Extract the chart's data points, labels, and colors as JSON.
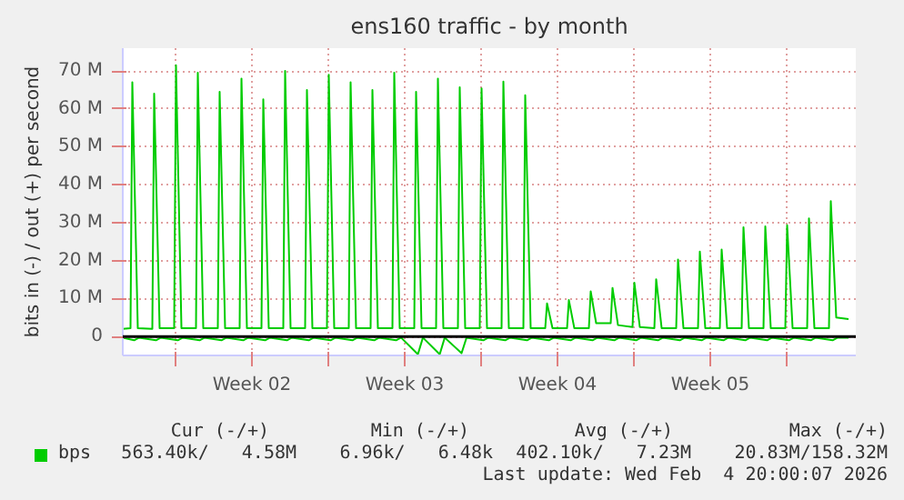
{
  "chart_data": {
    "type": "line",
    "title": "ens160 traffic - by month",
    "ylabel": "bits in (-) / out (+) per second",
    "xlim": [
      "2026-01-02T14:00",
      "2026-02-05T04:00"
    ],
    "ylim": [
      -5,
      76
    ],
    "xticks": [
      {
        "value": "2026-01-05",
        "label": null
      },
      {
        "value": "2026-01-08T12:00",
        "label": "Week 02"
      },
      {
        "value": "2026-01-12",
        "label": null
      },
      {
        "value": "2026-01-15T12:00",
        "label": "Week 03"
      },
      {
        "value": "2026-01-19",
        "label": null
      },
      {
        "value": "2026-01-22T12:00",
        "label": "Week 04"
      },
      {
        "value": "2026-01-26",
        "label": null
      },
      {
        "value": "2026-01-29T12:00",
        "label": "Week 05"
      },
      {
        "value": "2026-02-02",
        "label": null
      }
    ],
    "yticks": [
      {
        "value": 0,
        "label": "0"
      },
      {
        "value": 10,
        "label": "10 M"
      },
      {
        "value": 20,
        "label": "20 M"
      },
      {
        "value": 30,
        "label": "30 M"
      },
      {
        "value": 40,
        "label": "40 M"
      },
      {
        "value": 50,
        "label": "50 M"
      },
      {
        "value": 60,
        "label": "60 M"
      },
      {
        "value": 70,
        "label": "70 M"
      }
    ],
    "grid": true,
    "legend": "bottom",
    "marker": "none",
    "line_style": "solid",
    "ref_lines": [
      {
        "axis": "y",
        "value": 0,
        "label": null,
        "color": "#000000"
      }
    ],
    "series": [
      {
        "name": "bps",
        "color": "#00cc00",
        "x": [
          "2026-01-02T14:00",
          "2026-01-02T22:30",
          "2026-01-03T00:30",
          "2026-01-03T06:30",
          "2026-01-03T22:30",
          "2026-01-04T00:30",
          "2026-01-04T06:30",
          "2026-01-04T22:30",
          "2026-01-05T00:30",
          "2026-01-05T06:30",
          "2026-01-05T22:30",
          "2026-01-06T00:30",
          "2026-01-06T06:30",
          "2026-01-06T22:30",
          "2026-01-07T00:30",
          "2026-01-07T06:30",
          "2026-01-07T22:30",
          "2026-01-08T00:30",
          "2026-01-08T06:30",
          "2026-01-08T22:30",
          "2026-01-09T00:30",
          "2026-01-09T06:30",
          "2026-01-09T22:30",
          "2026-01-10T00:30",
          "2026-01-10T06:30",
          "2026-01-10T22:30",
          "2026-01-11T00:30",
          "2026-01-11T06:30",
          "2026-01-11T22:30",
          "2026-01-12T00:30",
          "2026-01-12T06:30",
          "2026-01-12T22:30",
          "2026-01-13T00:30",
          "2026-01-13T06:30",
          "2026-01-13T22:30",
          "2026-01-14T00:30",
          "2026-01-14T06:30",
          "2026-01-14T22:30",
          "2026-01-15T00:30",
          "2026-01-15T06:30",
          "2026-01-15T22:30",
          "2026-01-16T00:30",
          "2026-01-16T06:30",
          "2026-01-16T22:30",
          "2026-01-17T00:30",
          "2026-01-17T06:30",
          "2026-01-17T22:30",
          "2026-01-18T00:30",
          "2026-01-18T06:30",
          "2026-01-18T22:30",
          "2026-01-19T00:30",
          "2026-01-19T06:30",
          "2026-01-19T22:30",
          "2026-01-20T00:30",
          "2026-01-20T06:30",
          "2026-01-20T22:30",
          "2026-01-21T00:30",
          "2026-01-21T06:30",
          "2026-01-21T22:30",
          "2026-01-22T00:30",
          "2026-01-22T06:30",
          "2026-01-22T22:30",
          "2026-01-23T00:30",
          "2026-01-23T06:30",
          "2026-01-23T22:30",
          "2026-01-24T00:30",
          "2026-01-24T06:30",
          "2026-01-24T22:30",
          "2026-01-25T00:30",
          "2026-01-25T06:30",
          "2026-01-25T22:30",
          "2026-01-26T00:30",
          "2026-01-26T06:30",
          "2026-01-26T22:30",
          "2026-01-27T00:30",
          "2026-01-27T06:30",
          "2026-01-27T22:30",
          "2026-01-28T00:30",
          "2026-01-28T06:30",
          "2026-01-28T22:30",
          "2026-01-29T00:30",
          "2026-01-29T06:30",
          "2026-01-29T22:30",
          "2026-01-30T00:30",
          "2026-01-30T06:30",
          "2026-01-30T22:30",
          "2026-01-31T00:30",
          "2026-01-31T06:30",
          "2026-01-31T22:30",
          "2026-02-01T00:30",
          "2026-02-01T06:30",
          "2026-02-01T22:30",
          "2026-02-02T00:30",
          "2026-02-02T06:30",
          "2026-02-02T22:30",
          "2026-02-03T00:30",
          "2026-02-03T06:30",
          "2026-02-03T22:30",
          "2026-02-04T00:30",
          "2026-02-04T06:30",
          "2026-02-04T20:00"
        ],
        "values": [
          2.0,
          2.2,
          67,
          2.2,
          2.0,
          64,
          2.2,
          2.2,
          71.5,
          2.2,
          2.2,
          69.5,
          2.2,
          2.2,
          64.5,
          2.2,
          2.2,
          68,
          2.2,
          2.2,
          62.5,
          2.2,
          2.2,
          70,
          2.2,
          2.2,
          65,
          2.2,
          2.2,
          69,
          2.2,
          2.2,
          67,
          2.2,
          2.2,
          65,
          2.2,
          2.2,
          69.5,
          2.2,
          2.2,
          64.5,
          2.2,
          2.2,
          68,
          2.2,
          2.2,
          65.7,
          2.2,
          2.2,
          65.4,
          2.2,
          2.2,
          67.2,
          2.2,
          2.2,
          63.6,
          2.2,
          2.2,
          8.7,
          2.2,
          2.2,
          9.6,
          2.2,
          2.2,
          11.9,
          3.5,
          3.5,
          12.8,
          3.0,
          2.5,
          14.2,
          2.5,
          2.2,
          15.1,
          2.2,
          2.2,
          20.3,
          2.2,
          2.2,
          22.4,
          2.2,
          2.2,
          22.9,
          2.2,
          2.2,
          28.8,
          2.2,
          2.2,
          29.0,
          2.2,
          2.2,
          29.3,
          2.2,
          2.2,
          31.1,
          2.2,
          2.2,
          35.7,
          5.0,
          4.6
        ]
      },
      {
        "color": "#00cc00",
        "x": [
          "2026-01-02T14:00",
          "2026-01-03T02:30",
          "2026-01-03T08:00",
          "2026-01-04T02:30",
          "2026-01-04T08:00",
          "2026-01-05T02:30",
          "2026-01-05T08:00",
          "2026-01-06T02:30",
          "2026-01-06T08:00",
          "2026-01-07T02:30",
          "2026-01-07T08:00",
          "2026-01-08T02:30",
          "2026-01-08T08:00",
          "2026-01-09T02:30",
          "2026-01-09T08:00",
          "2026-01-10T02:30",
          "2026-01-10T08:00",
          "2026-01-11T02:30",
          "2026-01-11T08:00",
          "2026-01-12T02:30",
          "2026-01-12T08:00",
          "2026-01-13T02:30",
          "2026-01-13T08:00",
          "2026-01-14T02:30",
          "2026-01-14T08:00",
          "2026-01-15T02:30",
          "2026-01-15T08:00",
          "2026-01-16T02:30",
          "2026-01-16T08:00",
          "2026-01-17T02:30",
          "2026-01-17T08:00",
          "2026-01-18T02:30",
          "2026-01-18T08:00",
          "2026-01-19T02:30",
          "2026-01-19T08:00",
          "2026-01-20T02:30",
          "2026-01-20T08:00",
          "2026-01-21T02:30",
          "2026-01-21T08:00",
          "2026-01-22T02:30",
          "2026-01-22T08:00",
          "2026-01-23T02:30",
          "2026-01-23T08:00",
          "2026-01-24T02:30",
          "2026-01-24T08:00",
          "2026-01-25T02:30",
          "2026-01-25T08:00",
          "2026-01-26T02:30",
          "2026-01-26T08:00",
          "2026-01-27T02:30",
          "2026-01-27T08:00",
          "2026-01-28T02:30",
          "2026-01-28T08:00",
          "2026-01-29T02:30",
          "2026-01-29T08:00",
          "2026-01-30T02:30",
          "2026-01-30T08:00",
          "2026-01-31T02:30",
          "2026-01-31T08:00",
          "2026-02-01T02:30",
          "2026-02-01T08:00",
          "2026-02-02T02:30",
          "2026-02-02T08:00",
          "2026-02-03T02:30",
          "2026-02-03T08:00",
          "2026-02-04T02:30",
          "2026-02-04T08:00",
          "2026-02-04T20:00"
        ],
        "values": [
          -0.3,
          -1.0,
          -0.3,
          -1.0,
          -0.3,
          -1.0,
          -0.3,
          -1.0,
          -0.3,
          -1.0,
          -0.3,
          -1.0,
          -0.3,
          -1.0,
          -0.3,
          -1.0,
          -0.3,
          -1.0,
          -0.3,
          -1.0,
          -0.3,
          -1.0,
          -0.3,
          -1.0,
          -0.3,
          -1.0,
          -0.3,
          -4.7,
          -0.3,
          -4.7,
          -0.3,
          -4.4,
          -0.3,
          -1.0,
          -0.3,
          -1.0,
          -0.3,
          -1.0,
          -0.3,
          -1.0,
          -0.3,
          -1.0,
          -0.3,
          -1.0,
          -0.3,
          -1.0,
          -0.3,
          -1.0,
          -0.3,
          -1.0,
          -0.3,
          -1.0,
          -0.3,
          -1.0,
          -0.3,
          -1.0,
          -0.3,
          -1.0,
          -0.3,
          -1.0,
          -0.3,
          -1.0,
          -0.3,
          -1.0,
          -0.3,
          -1.0,
          -0.3,
          -0.3
        ]
      }
    ],
    "annotations": [
      "Cur (-/+)",
      "Min (-/+)",
      "Avg (-/+)",
      "Max (-/+)",
      "563.40k/   4.58M",
      "6.96k/   6.48k",
      "402.10k/   7.23M",
      "20.83M/158.32M",
      "Last update: Wed Feb  4 20:00:07 2026"
    ]
  }
}
